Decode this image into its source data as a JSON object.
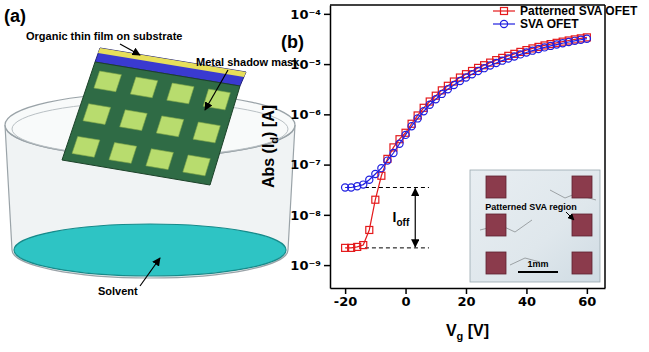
{
  "diagram": {
    "panel_label": "(a)",
    "labels": {
      "film": "Organic thin film on substrate",
      "mask": "Metal shadow mask",
      "solvent": "Solvent"
    }
  },
  "chart_data": {
    "type": "line",
    "panel_label": "(b)",
    "x_label": {
      "text": "V",
      "subscript": "g",
      "suffix": " [V]"
    },
    "y_label": {
      "text": "Abs (I",
      "subscript": "d",
      "suffix": ") [A]"
    },
    "x": [
      -20,
      -18,
      -16,
      -14,
      -12,
      -10,
      -8,
      -6,
      -4,
      -2,
      0,
      2,
      4,
      6,
      8,
      10,
      12,
      14,
      16,
      18,
      20,
      22,
      24,
      26,
      28,
      30,
      32,
      34,
      36,
      38,
      40,
      42,
      44,
      46,
      48,
      50,
      52,
      54,
      56,
      58,
      60
    ],
    "xlim": [
      -25,
      66
    ],
    "xticks": [
      -20,
      0,
      20,
      40,
      60
    ],
    "ylim": [
      3.5e-10,
      0.00015
    ],
    "yticks": [
      {
        "value": 1e-09,
        "label": "10⁻⁹"
      },
      {
        "value": 1e-08,
        "label": "10⁻⁸"
      },
      {
        "value": 1e-07,
        "label": "10⁻⁷"
      },
      {
        "value": 1e-06,
        "label": "10⁻⁶"
      },
      {
        "value": 1e-05,
        "label": "10⁻⁵"
      },
      {
        "value": 0.0001,
        "label": "10⁻⁴"
      }
    ],
    "log": "y",
    "legend": "upper right",
    "series": [
      {
        "name": "Patterned SVA OFET",
        "color": "#e41a1c",
        "marker": "square",
        "values": [
          2.2e-09,
          2.2e-09,
          2.3e-09,
          2.5e-09,
          5e-09,
          2e-08,
          6e-08,
          1.3e-07,
          2.2e-07,
          3.2e-07,
          4.3e-07,
          6.5e-07,
          9.5e-07,
          1.35e-06,
          1.8e-06,
          2.35e-06,
          3e-06,
          3.7e-06,
          4.5e-06,
          5.4e-06,
          6.3e-06,
          7.3e-06,
          8.4e-06,
          9.5e-06,
          1.07e-05,
          1.2e-05,
          1.33e-05,
          1.46e-05,
          1.6e-05,
          1.75e-05,
          1.9e-05,
          2.05e-05,
          2.2e-05,
          2.35e-05,
          2.5e-05,
          2.65e-05,
          2.8e-05,
          2.95e-05,
          3.1e-05,
          3.25e-05,
          3.4e-05
        ]
      },
      {
        "name": "SVA OFET",
        "color": "#2020e0",
        "marker": "circle",
        "values": [
          3.5e-08,
          3.5e-08,
          3.7e-08,
          4e-08,
          5e-08,
          6.5e-08,
          8.5e-08,
          1.2e-07,
          1.7e-07,
          2.6e-07,
          3.9e-07,
          5.8e-07,
          8.3e-07,
          1.15e-06,
          1.55e-06,
          2e-06,
          2.55e-06,
          3.15e-06,
          3.85e-06,
          4.6e-06,
          5.4e-06,
          6.3e-06,
          7.3e-06,
          8.3e-06,
          9.4e-06,
          1.05e-05,
          1.17e-05,
          1.29e-05,
          1.42e-05,
          1.56e-05,
          1.7e-05,
          1.85e-05,
          2e-05,
          2.15e-05,
          2.3e-05,
          2.45e-05,
          2.6e-05,
          2.75e-05,
          2.9e-05,
          3.05e-05,
          3.2e-05
        ]
      }
    ],
    "annotations": [
      {
        "text": "I",
        "subscript": "off",
        "levels": [
          3.5e-08,
          2.2e-09
        ]
      }
    ],
    "inset": {
      "text": "Patterned SVA region",
      "scale_bar": "1mm"
    }
  }
}
